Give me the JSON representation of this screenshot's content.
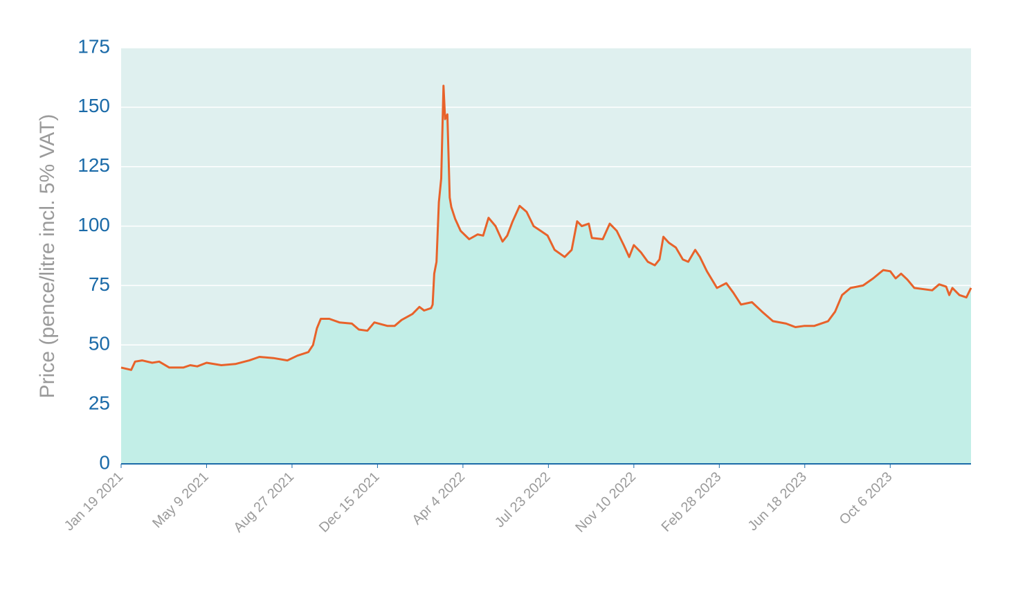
{
  "chart_data": {
    "type": "area",
    "ylabel": "Price (pence/litre incl. 5% VAT)",
    "x": [
      "2021-01-19",
      "2021-02-01",
      "2021-02-06",
      "2021-02-15",
      "2021-02-28",
      "2021-03-09",
      "2021-03-22",
      "2021-04-09",
      "2021-04-18",
      "2021-04-27",
      "2021-05-09",
      "2021-05-28",
      "2021-06-15",
      "2021-07-03",
      "2021-07-16",
      "2021-08-03",
      "2021-08-21",
      "2021-09-03",
      "2021-09-17",
      "2021-09-23",
      "2021-09-28",
      "2021-10-03",
      "2021-10-14",
      "2021-10-27",
      "2021-11-12",
      "2021-11-21",
      "2021-12-02",
      "2021-12-11",
      "2021-12-28",
      "2022-01-06",
      "2022-01-15",
      "2022-01-29",
      "2022-02-07",
      "2022-02-13",
      "2022-02-22",
      "2022-02-24",
      "2022-02-26",
      "2022-03-01",
      "2022-03-04",
      "2022-03-07",
      "2022-03-10",
      "2022-03-12",
      "2022-03-15",
      "2022-03-18",
      "2022-03-20",
      "2022-03-25",
      "2022-04-01",
      "2022-04-12",
      "2022-04-23",
      "2022-04-30",
      "2022-05-07",
      "2022-05-16",
      "2022-05-25",
      "2022-05-31",
      "2022-06-07",
      "2022-06-16",
      "2022-06-25",
      "2022-07-04",
      "2022-07-13",
      "2022-07-22",
      "2022-07-31",
      "2022-08-13",
      "2022-08-22",
      "2022-08-29",
      "2022-09-04",
      "2022-09-13",
      "2022-09-17",
      "2022-10-01",
      "2022-10-10",
      "2022-10-19",
      "2022-10-28",
      "2022-11-04",
      "2022-11-10",
      "2022-11-19",
      "2022-11-28",
      "2022-12-07",
      "2022-12-13",
      "2022-12-18",
      "2022-12-25",
      "2023-01-03",
      "2023-01-12",
      "2023-01-19",
      "2023-01-28",
      "2023-02-03",
      "2023-02-12",
      "2023-02-25",
      "2023-03-09",
      "2023-03-18",
      "2023-03-28",
      "2023-04-11",
      "2023-04-24",
      "2023-05-08",
      "2023-05-25",
      "2023-06-06",
      "2023-06-17",
      "2023-06-30",
      "2023-07-18",
      "2023-07-27",
      "2023-08-05",
      "2023-08-16",
      "2023-09-01",
      "2023-09-14",
      "2023-09-27",
      "2023-10-06",
      "2023-10-13",
      "2023-10-20",
      "2023-10-28",
      "2023-11-06",
      "2023-11-29",
      "2023-12-08",
      "2023-12-17",
      "2023-12-21",
      "2023-12-25",
      "2024-01-03",
      "2024-01-12",
      "2024-01-18"
    ],
    "series": [
      {
        "color": "#e8622a",
        "fill": "#c2eee7",
        "values": [
          40.5,
          39.5,
          43,
          43.5,
          42.5,
          43,
          40.5,
          40.5,
          41.5,
          41,
          42.5,
          41.5,
          42,
          43.5,
          45,
          44.5,
          43.5,
          45.5,
          47,
          50,
          57,
          61,
          61,
          59.5,
          59,
          56.5,
          56,
          59.5,
          58,
          58,
          60.5,
          63,
          66,
          64.5,
          65.5,
          67,
          80,
          85,
          110,
          120,
          159,
          145,
          147,
          112,
          108,
          103,
          98,
          94.5,
          96.5,
          96,
          103.5,
          100,
          93.5,
          96,
          102,
          108.5,
          106,
          100,
          98,
          96,
          90,
          87,
          90,
          102,
          100,
          101,
          95,
          94.5,
          101,
          98,
          92,
          87,
          92,
          89,
          85,
          83.5,
          86,
          95.5,
          93,
          91,
          86,
          85,
          90,
          87,
          81,
          74,
          76,
          72,
          67,
          68,
          64,
          60,
          59,
          57.5,
          58,
          58,
          60,
          64,
          71,
          74,
          75,
          78,
          81.5,
          81,
          78,
          80,
          77.5,
          74,
          73,
          75.5,
          74.5,
          71,
          74,
          71,
          70,
          74
        ]
      }
    ],
    "xlim": [
      "2021-01-19",
      "2024-01-18"
    ],
    "xticks": [
      {
        "value": "2021-01-19",
        "label": "Jan 19 2021"
      },
      {
        "value": "2021-05-09",
        "label": "May 9 2021"
      },
      {
        "value": "2021-08-27",
        "label": "Aug 27 2021"
      },
      {
        "value": "2021-12-15",
        "label": "Dec 15 2021"
      },
      {
        "value": "2022-04-04",
        "label": "Apr 4 2022"
      },
      {
        "value": "2022-07-23",
        "label": "Jul 23 2022"
      },
      {
        "value": "2022-11-10",
        "label": "Nov 10 2022"
      },
      {
        "value": "2023-02-28",
        "label": "Feb 28 2023"
      },
      {
        "value": "2023-06-18",
        "label": "Jun 18 2023"
      },
      {
        "value": "2023-10-06",
        "label": "Oct 6 2023"
      }
    ],
    "ylim": [
      0,
      175
    ],
    "yticks": [
      0,
      25,
      50,
      75,
      100,
      125,
      150,
      175
    ],
    "grid": true,
    "background": "#dff0ef"
  }
}
